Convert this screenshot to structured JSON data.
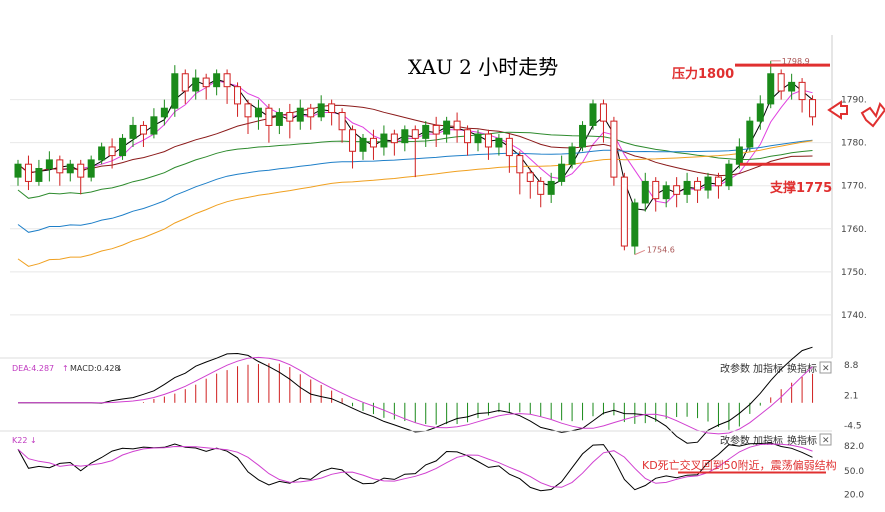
{
  "chart_data": [
    {
      "type": "candlestick",
      "title": "XAU 2 小时走势",
      "ylim": [
        1730,
        1805
      ],
      "yticks": [
        1740,
        1750,
        1760,
        1770,
        1780,
        1790
      ],
      "yticks_partial_top": "1790.",
      "yticks_partial_mid": "1780.",
      "annotations": {
        "high": "1798.9",
        "low": "1754.6",
        "resistance": "压力1800",
        "support": "支撑1775"
      },
      "resistance_level": 1798,
      "support_level": 1775,
      "candles": [
        [
          1772,
          1775,
          1770,
          1776
        ],
        [
          1775,
          1771,
          1769,
          1777
        ],
        [
          1771,
          1774,
          1770,
          1776
        ],
        [
          1774,
          1776,
          1771,
          1778
        ],
        [
          1776,
          1773,
          1770,
          1777
        ],
        [
          1773,
          1775,
          1771,
          1776
        ],
        [
          1775,
          1772,
          1768,
          1776
        ],
        [
          1772,
          1776,
          1771,
          1777
        ],
        [
          1776,
          1779,
          1775,
          1780
        ],
        [
          1779,
          1777,
          1774,
          1781
        ],
        [
          1777,
          1781,
          1776,
          1782
        ],
        [
          1781,
          1784,
          1779,
          1786
        ],
        [
          1784,
          1782,
          1779,
          1785
        ],
        [
          1782,
          1786,
          1781,
          1788
        ],
        [
          1786,
          1788,
          1784,
          1790
        ],
        [
          1788,
          1796,
          1786,
          1798
        ],
        [
          1796,
          1792,
          1789,
          1797
        ],
        [
          1792,
          1795,
          1790,
          1797
        ],
        [
          1795,
          1793,
          1790,
          1796
        ],
        [
          1793,
          1796,
          1791,
          1797
        ],
        [
          1796,
          1793,
          1789,
          1797
        ],
        [
          1793,
          1789,
          1786,
          1794
        ],
        [
          1789,
          1786,
          1782,
          1790
        ],
        [
          1786,
          1788,
          1783,
          1790
        ],
        [
          1788,
          1784,
          1780,
          1789
        ],
        [
          1784,
          1787,
          1782,
          1788
        ],
        [
          1787,
          1785,
          1781,
          1789
        ],
        [
          1785,
          1788,
          1783,
          1790
        ],
        [
          1788,
          1786,
          1783,
          1789
        ],
        [
          1786,
          1789,
          1785,
          1791
        ],
        [
          1789,
          1787,
          1784,
          1790
        ],
        [
          1787,
          1783,
          1780,
          1788
        ],
        [
          1783,
          1778,
          1774,
          1784
        ],
        [
          1778,
          1781,
          1776,
          1782
        ],
        [
          1781,
          1779,
          1776,
          1783
        ],
        [
          1779,
          1782,
          1777,
          1784
        ],
        [
          1782,
          1780,
          1777,
          1783
        ],
        [
          1780,
          1783,
          1778,
          1784
        ],
        [
          1783,
          1781,
          1772,
          1784
        ],
        [
          1781,
          1784,
          1779,
          1785
        ],
        [
          1784,
          1782,
          1779,
          1786
        ],
        [
          1782,
          1785,
          1780,
          1786
        ],
        [
          1785,
          1783,
          1780,
          1787
        ],
        [
          1783,
          1780,
          1777,
          1784
        ],
        [
          1780,
          1782,
          1778,
          1783
        ],
        [
          1782,
          1779,
          1776,
          1783
        ],
        [
          1779,
          1781,
          1777,
          1782
        ],
        [
          1781,
          1777,
          1773,
          1782
        ],
        [
          1777,
          1773,
          1768,
          1778
        ],
        [
          1773,
          1771,
          1767,
          1774
        ],
        [
          1771,
          1768,
          1765,
          1772
        ],
        [
          1768,
          1771,
          1766,
          1773
        ],
        [
          1771,
          1775,
          1770,
          1777
        ],
        [
          1775,
          1779,
          1774,
          1780
        ],
        [
          1779,
          1784,
          1778,
          1785
        ],
        [
          1784,
          1789,
          1783,
          1790
        ],
        [
          1789,
          1785,
          1780,
          1790
        ],
        [
          1785,
          1772,
          1770,
          1786
        ],
        [
          1772,
          1756,
          1755,
          1773
        ],
        [
          1756,
          1766,
          1754,
          1767
        ],
        [
          1766,
          1771,
          1764,
          1773
        ],
        [
          1771,
          1767,
          1764,
          1772
        ],
        [
          1767,
          1770,
          1765,
          1771
        ],
        [
          1770,
          1768,
          1765,
          1772
        ],
        [
          1768,
          1771,
          1766,
          1773
        ],
        [
          1771,
          1769,
          1766,
          1772
        ],
        [
          1769,
          1772,
          1767,
          1773
        ],
        [
          1772,
          1770,
          1767,
          1773
        ],
        [
          1770,
          1775,
          1769,
          1776
        ],
        [
          1775,
          1779,
          1774,
          1781
        ],
        [
          1779,
          1785,
          1778,
          1786
        ],
        [
          1785,
          1789,
          1783,
          1791
        ],
        [
          1789,
          1796,
          1788,
          1799
        ],
        [
          1796,
          1792,
          1790,
          1797
        ],
        [
          1792,
          1794,
          1790,
          1796
        ],
        [
          1794,
          1790,
          1787,
          1795
        ],
        [
          1790,
          1786,
          1784,
          1791
        ]
      ],
      "series": [
        {
          "name": "",
          "color": "#e040e0"
        },
        {
          "name": "",
          "color": "#000000"
        },
        {
          "name": "",
          "color": "#8b1a1a"
        },
        {
          "name": "",
          "color": "#2e8b2e"
        },
        {
          "name": "",
          "color": "#1e7fc8"
        },
        {
          "name": "",
          "color": "#f0a020"
        }
      ]
    },
    {
      "type": "macd",
      "label_dea": "DEA:4.287",
      "label_macd": "MACD:0.428",
      "yticks": [
        "8.8",
        "2.1",
        "-4.5"
      ],
      "ylim": [
        -5.5,
        9.5
      ]
    },
    {
      "type": "kdj",
      "label": "K22",
      "yticks": [
        "82.0",
        "50.0",
        "20.0"
      ],
      "ylim": [
        0,
        100
      ],
      "annotation": "KD死亡交叉回到50附近，震荡偏弱结构"
    }
  ],
  "panel_menu": {
    "item1": "改参数",
    "item2": "加指标",
    "item3": "换指标",
    "close": "✕"
  },
  "colors": {
    "up": "#1a8a1a",
    "down": "#d02020",
    "annotation": "#e03030"
  }
}
